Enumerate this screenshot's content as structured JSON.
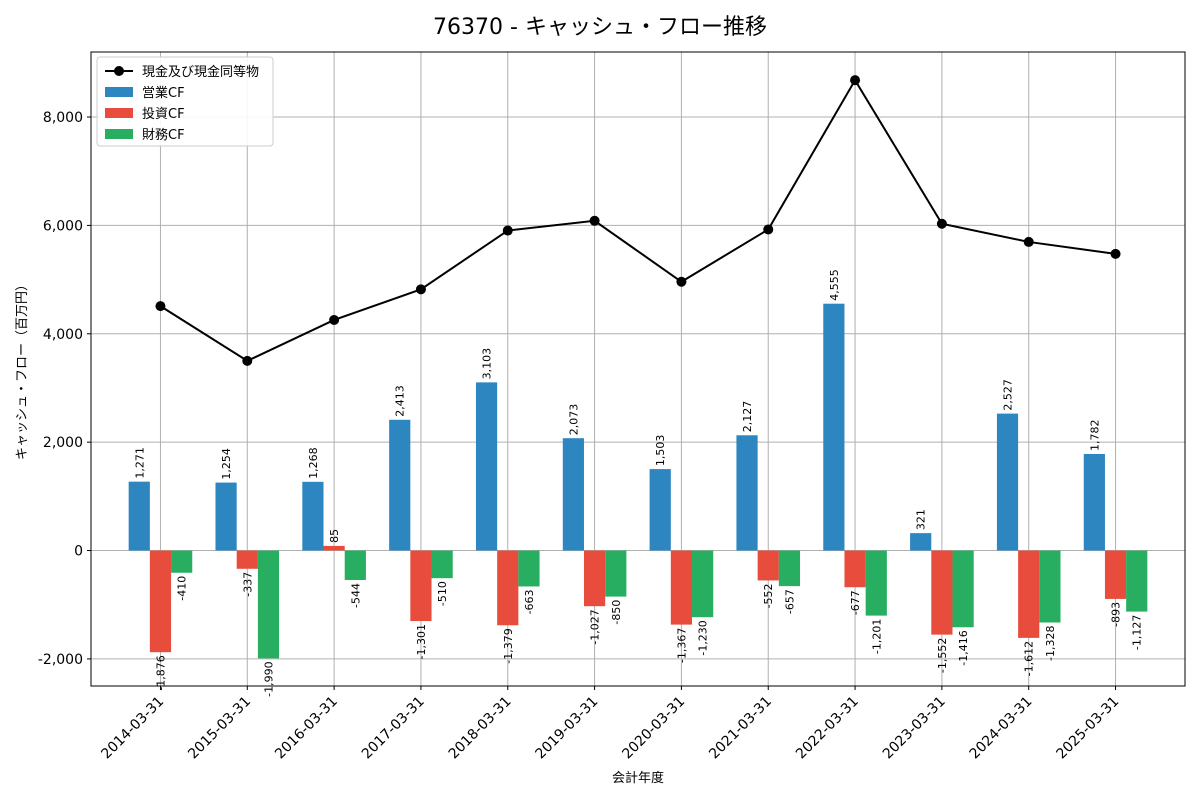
{
  "chart_data": {
    "type": "bar",
    "title": "76370 - キャッシュ・フロー推移",
    "xlabel": "会計年度",
    "ylabel": "キャッシュ・フロー（百万円）",
    "ylim": [
      -2500,
      9200
    ],
    "yticks": [
      -2000,
      0,
      2000,
      4000,
      6000,
      8000
    ],
    "ytick_labels": [
      "-2,000",
      "0",
      "2,000",
      "4,000",
      "6,000",
      "8,000"
    ],
    "grid": true,
    "legend_position": "top-left",
    "categories": [
      "2014-03-31",
      "2015-03-31",
      "2016-03-31",
      "2017-03-31",
      "2018-03-31",
      "2019-03-31",
      "2020-03-31",
      "2021-03-31",
      "2022-03-31",
      "2023-03-31",
      "2024-03-31",
      "2025-03-31"
    ],
    "series": [
      {
        "name": "営業CF",
        "kind": "bar",
        "color": "#2e86c1",
        "values": [
          1271,
          1254,
          1268,
          2413,
          3103,
          2073,
          1503,
          2127,
          4555,
          321,
          2527,
          1782
        ],
        "labels": [
          "1,271",
          "1,254",
          "1,268",
          "2,413",
          "3,103",
          "2,073",
          "1,503",
          "2,127",
          "4,555",
          "321",
          "2,527",
          "1,782"
        ]
      },
      {
        "name": "投資CF",
        "kind": "bar",
        "color": "#e74c3c",
        "values": [
          -1876,
          -337,
          85,
          -1301,
          -1379,
          -1027,
          -1367,
          -552,
          -677,
          -1552,
          -1612,
          -893
        ],
        "labels": [
          "-1,876",
          "-337",
          "85",
          "-1,301",
          "-1,379",
          "-1,027",
          "-1,367",
          "-552",
          "-677",
          "-1,552",
          "-1,612",
          "-893"
        ]
      },
      {
        "name": "財務CF",
        "kind": "bar",
        "color": "#27ae60",
        "values": [
          -410,
          -1990,
          -544,
          -510,
          -663,
          -850,
          -1230,
          -657,
          -1201,
          -1416,
          -1328,
          -1127
        ],
        "labels": [
          "-410",
          "-1,990",
          "-544",
          "-510",
          "-663",
          "-850",
          "-1,230",
          "-657",
          "-1,201",
          "-1,416",
          "-1,328",
          "-1,127"
        ]
      },
      {
        "name": "現金及び現金同等物",
        "kind": "line",
        "color": "#000000",
        "values": [
          4510,
          3500,
          4255,
          4820,
          5905,
          6085,
          4960,
          5925,
          8680,
          6030,
          5695,
          5475
        ]
      }
    ]
  }
}
